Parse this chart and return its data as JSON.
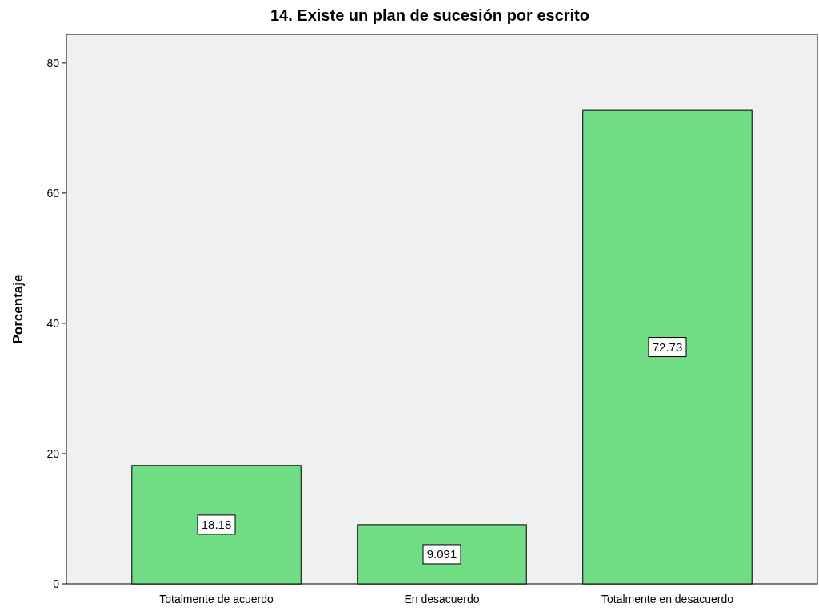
{
  "chart_data": {
    "type": "bar",
    "title": "14. Existe un plan de sucesión por escrito",
    "ylabel": "Porcentaje",
    "categories": [
      "Totalmente de acuerdo",
      "En desacuerdo",
      "Totalmente en desacuerdo"
    ],
    "values": [
      18.18,
      9.091,
      72.73
    ],
    "color": "#70dc84",
    "ylim": [
      0,
      84.4
    ],
    "yticks": [
      0,
      20,
      40,
      60,
      80
    ],
    "grid": false,
    "data_labels": true
  }
}
